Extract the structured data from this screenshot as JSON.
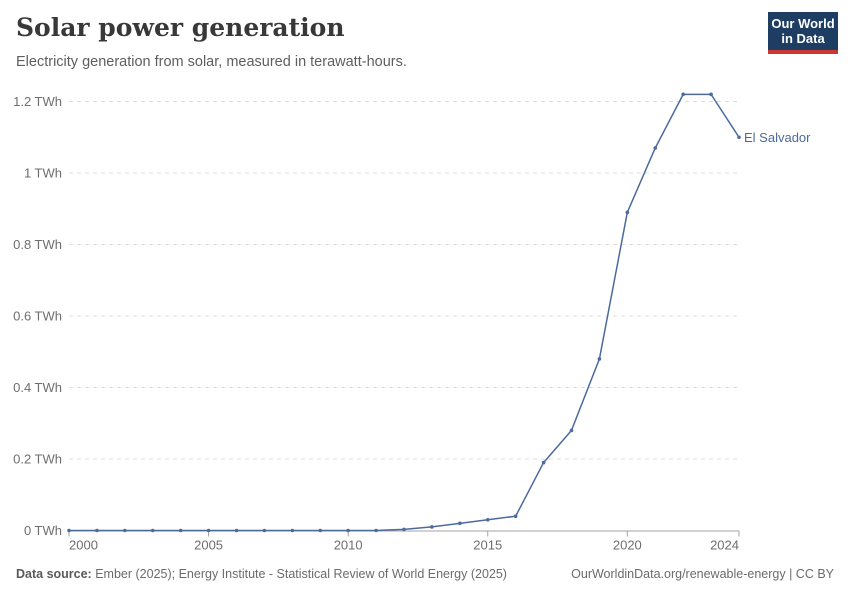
{
  "header": {
    "title": "Solar power generation",
    "subtitle": "Electricity generation from solar, measured in terawatt-hours.",
    "logo": {
      "line1": "Our World",
      "line2": "in Data"
    }
  },
  "chart_data": {
    "type": "line",
    "title": "Solar power generation",
    "ylabel": "",
    "xlabel": "",
    "unit": "TWh",
    "grid": "horizontal-dashed",
    "legend_position": "end-of-line-label",
    "x": [
      2000,
      2001,
      2002,
      2003,
      2004,
      2005,
      2006,
      2007,
      2008,
      2009,
      2010,
      2011,
      2012,
      2013,
      2014,
      2015,
      2016,
      2017,
      2018,
      2019,
      2020,
      2021,
      2022,
      2023,
      2024
    ],
    "series": [
      {
        "name": "El Salvador",
        "color": "#4C6A9C",
        "values": [
          0,
          0,
          0,
          0,
          0,
          0,
          0,
          0,
          0,
          0,
          0,
          0,
          0.003,
          0.01,
          0.02,
          0.03,
          0.04,
          0.19,
          0.28,
          0.48,
          0.89,
          1.07,
          1.22,
          1.22,
          1.1
        ]
      }
    ],
    "ylim": [
      0,
      1.2
    ],
    "yticks": [
      {
        "value": 0,
        "label": "0 TWh"
      },
      {
        "value": 0.2,
        "label": "0.2 TWh"
      },
      {
        "value": 0.4,
        "label": "0.4 TWh"
      },
      {
        "value": 0.6,
        "label": "0.6 TWh"
      },
      {
        "value": 0.8,
        "label": "0.8 TWh"
      },
      {
        "value": 1,
        "label": "1 TWh"
      },
      {
        "value": 1.2,
        "label": "1.2 TWh"
      }
    ],
    "xticks": [
      2000,
      2005,
      2010,
      2015,
      2020,
      2024
    ]
  },
  "colors": {
    "line": "#4C6A9C",
    "grid": "#dcdcdc",
    "axis_line": "#a3a3a3",
    "axis_text": "#6e6e6e",
    "logo_bg": "#1d3d63",
    "logo_stripe": "#cd3731"
  },
  "footer": {
    "source_label": "Data source:",
    "source_text": "Ember (2025); Energy Institute - Statistical Review of World Energy (2025)",
    "credit": "OurWorldinData.org/renewable-energy | CC BY"
  }
}
